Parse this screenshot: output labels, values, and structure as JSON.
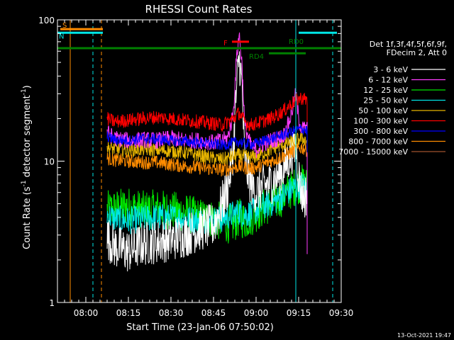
{
  "chart_data": {
    "type": "line",
    "title": "RHESSI Count Rates",
    "ylabel_text": "Count Rate (s",
    "ylabel_sup1": "-1",
    "ylabel_mid": " detector segment",
    "ylabel_sup2": "-1",
    "ylabel_end": ")",
    "xlabel": "Start Time (23-Jan-06 07:50:02)",
    "y_scale": "log",
    "ylim": [
      1,
      100
    ],
    "y_ticks": [
      {
        "value": 1,
        "label": "1"
      },
      {
        "value": 10,
        "label": "10"
      },
      {
        "value": 100,
        "label": "100"
      }
    ],
    "xlim_minutes": [
      0,
      100
    ],
    "x_ticks": [
      {
        "value": 10,
        "label": "08:00"
      },
      {
        "value": 25,
        "label": "08:15"
      },
      {
        "value": 40,
        "label": "08:30"
      },
      {
        "value": 55,
        "label": "08:45"
      },
      {
        "value": 70,
        "label": "09:00"
      },
      {
        "value": 85,
        "label": "09:15"
      },
      {
        "value": 100,
        "label": "09:30"
      }
    ],
    "legend_title": "Det 1f,3f,4f,5f,6f,9f,",
    "legend_subtitle": "FDecim 2, Att 0",
    "legend_position": "right",
    "series": [
      {
        "name": "3 - 6 keV",
        "color": "#ffffff",
        "points": [
          [
            17.5,
            2.9
          ],
          [
            20,
            2.5
          ],
          [
            25,
            2.3
          ],
          [
            30,
            2.6
          ],
          [
            35,
            2.7
          ],
          [
            40,
            2.8
          ],
          [
            45,
            3.0
          ],
          [
            50,
            3.3
          ],
          [
            55,
            3.5
          ],
          [
            58,
            5.0
          ],
          [
            60,
            6.5
          ],
          [
            62,
            12
          ],
          [
            63,
            30
          ],
          [
            64,
            55
          ],
          [
            65,
            35
          ],
          [
            66,
            10
          ],
          [
            68,
            7
          ],
          [
            70,
            6
          ],
          [
            72,
            6.5
          ],
          [
            75,
            7
          ],
          [
            78,
            8
          ],
          [
            80,
            9
          ],
          [
            82,
            11
          ],
          [
            84,
            13
          ],
          [
            85,
            8
          ],
          [
            86,
            6
          ],
          [
            87,
            5.5
          ],
          [
            88,
            6
          ]
        ]
      },
      {
        "name": "6 - 12 keV",
        "color": "#ff3cff",
        "points": [
          [
            17.5,
            16
          ],
          [
            20,
            14.5
          ],
          [
            25,
            14
          ],
          [
            30,
            14.2
          ],
          [
            35,
            14
          ],
          [
            40,
            14.5
          ],
          [
            45,
            14
          ],
          [
            50,
            14
          ],
          [
            55,
            13.5
          ],
          [
            58,
            14
          ],
          [
            60,
            14.5
          ],
          [
            62,
            22
          ],
          [
            63,
            50
          ],
          [
            64,
            80
          ],
          [
            65,
            50
          ],
          [
            66,
            18
          ],
          [
            68,
            13
          ],
          [
            70,
            12
          ],
          [
            72,
            13
          ],
          [
            75,
            14
          ],
          [
            78,
            14.5
          ],
          [
            80,
            15.5
          ],
          [
            82,
            20
          ],
          [
            84,
            30
          ],
          [
            85,
            20
          ],
          [
            86,
            17
          ],
          [
            88,
            17
          ]
        ]
      },
      {
        "name": "12 - 25 keV",
        "color": "#00e600",
        "points": [
          [
            17.5,
            4.5
          ],
          [
            20,
            4.6
          ],
          [
            25,
            4.8
          ],
          [
            30,
            4.5
          ],
          [
            35,
            4.6
          ],
          [
            40,
            4.5
          ],
          [
            45,
            4.3
          ],
          [
            50,
            4.0
          ],
          [
            55,
            3.9
          ],
          [
            58,
            3.7
          ],
          [
            60,
            3.6
          ],
          [
            62,
            3.6
          ],
          [
            64,
            4.0
          ],
          [
            66,
            3.8
          ],
          [
            68,
            4.0
          ],
          [
            70,
            4.3
          ],
          [
            72,
            4.6
          ],
          [
            75,
            5.0
          ],
          [
            78,
            5.3
          ],
          [
            80,
            5.8
          ],
          [
            82,
            6.2
          ],
          [
            84,
            6.7
          ],
          [
            86,
            7.0
          ],
          [
            88,
            6.6
          ]
        ]
      },
      {
        "name": "25 - 50 keV",
        "color": "#00e6e6",
        "points": [
          [
            17.5,
            4.2
          ],
          [
            20,
            3.9
          ],
          [
            25,
            3.8
          ],
          [
            30,
            3.9
          ],
          [
            35,
            4.0
          ],
          [
            40,
            4.0
          ],
          [
            45,
            3.9
          ],
          [
            50,
            3.8
          ],
          [
            55,
            3.8
          ],
          [
            58,
            3.9
          ],
          [
            60,
            4.1
          ],
          [
            62,
            4.2
          ],
          [
            64,
            4.4
          ],
          [
            66,
            4.2
          ],
          [
            68,
            4.3
          ],
          [
            70,
            4.5
          ],
          [
            72,
            4.8
          ],
          [
            75,
            5.0
          ],
          [
            78,
            5.4
          ],
          [
            80,
            5.8
          ],
          [
            82,
            6.2
          ],
          [
            84,
            6.6
          ],
          [
            86,
            6.8
          ],
          [
            88,
            6.5
          ]
        ]
      },
      {
        "name": "50 - 100 keV",
        "color": "#e6b400",
        "points": [
          [
            17.5,
            12.5
          ],
          [
            20,
            12.2
          ],
          [
            25,
            12.0
          ],
          [
            30,
            12.1
          ],
          [
            35,
            12.0
          ],
          [
            40,
            11.8
          ],
          [
            45,
            11.5
          ],
          [
            50,
            11.0
          ],
          [
            55,
            10.5
          ],
          [
            58,
            10.3
          ],
          [
            60,
            10.5
          ],
          [
            62,
            10.8
          ],
          [
            64,
            11.0
          ],
          [
            66,
            10.8
          ],
          [
            68,
            10.6
          ],
          [
            70,
            10.8
          ],
          [
            72,
            11.2
          ],
          [
            75,
            12.0
          ],
          [
            78,
            12.8
          ],
          [
            80,
            13.2
          ],
          [
            82,
            13.5
          ],
          [
            84,
            14.0
          ],
          [
            86,
            14.5
          ],
          [
            88,
            14.0
          ]
        ]
      },
      {
        "name": "100 - 300 keV",
        "color": "#ff0000",
        "points": [
          [
            17.5,
            20
          ],
          [
            20,
            19
          ],
          [
            25,
            19.5
          ],
          [
            30,
            20
          ],
          [
            35,
            20.5
          ],
          [
            40,
            20
          ],
          [
            45,
            19.5
          ],
          [
            50,
            19
          ],
          [
            55,
            18.5
          ],
          [
            58,
            18
          ],
          [
            60,
            19
          ],
          [
            62,
            20
          ],
          [
            64,
            22
          ],
          [
            66,
            19
          ],
          [
            68,
            18
          ],
          [
            70,
            18.5
          ],
          [
            72,
            19
          ],
          [
            75,
            20
          ],
          [
            78,
            21.5
          ],
          [
            80,
            23
          ],
          [
            82,
            25
          ],
          [
            84,
            27
          ],
          [
            86,
            28
          ],
          [
            88,
            27
          ]
        ]
      },
      {
        "name": "300 - 800 keV",
        "color": "#0000ff",
        "points": [
          [
            17.5,
            15
          ],
          [
            20,
            14.2
          ],
          [
            25,
            14.0
          ],
          [
            30,
            14.5
          ],
          [
            35,
            14.3
          ],
          [
            40,
            14.0
          ],
          [
            45,
            13.8
          ],
          [
            50,
            13.5
          ],
          [
            55,
            13.2
          ],
          [
            58,
            13.0
          ],
          [
            60,
            13.2
          ],
          [
            62,
            13.5
          ],
          [
            64,
            13.8
          ],
          [
            66,
            13.3
          ],
          [
            68,
            13.2
          ],
          [
            70,
            13.3
          ],
          [
            72,
            13.8
          ],
          [
            75,
            14.3
          ],
          [
            78,
            15.0
          ],
          [
            80,
            15.5
          ],
          [
            82,
            16.0
          ],
          [
            84,
            16.5
          ],
          [
            86,
            17.0
          ],
          [
            88,
            16.5
          ]
        ]
      },
      {
        "name": "800 - 7000 keV",
        "color": "#ff8c00",
        "points": [
          [
            17.5,
            10.5
          ],
          [
            20,
            10.2
          ],
          [
            25,
            10.0
          ],
          [
            30,
            9.8
          ],
          [
            35,
            9.8
          ],
          [
            40,
            9.5
          ],
          [
            45,
            9.2
          ],
          [
            50,
            9.0
          ],
          [
            55,
            8.8
          ],
          [
            58,
            8.7
          ],
          [
            60,
            8.8
          ],
          [
            62,
            9.0
          ],
          [
            64,
            9.2
          ],
          [
            66,
            9.0
          ],
          [
            68,
            8.9
          ],
          [
            70,
            9.0
          ],
          [
            72,
            9.4
          ],
          [
            75,
            10.0
          ],
          [
            78,
            10.5
          ],
          [
            80,
            11.0
          ],
          [
            82,
            11.5
          ],
          [
            84,
            12.0
          ],
          [
            86,
            12.5
          ],
          [
            88,
            12.0
          ]
        ]
      },
      {
        "name": "7000 - 15000 keV",
        "color": "#a0522d",
        "points": []
      }
    ],
    "flags": [
      {
        "label": "S",
        "color": "#ff8c00",
        "y": 86,
        "x0": 1,
        "x1": 16
      },
      {
        "label": "N",
        "color": "#00e6e6",
        "y": 81,
        "x0": 0,
        "x1": 16
      },
      {
        "label": "F",
        "color": "#ff0000",
        "y": 70,
        "x0": 61.5,
        "x1": 67.5
      },
      {
        "label": "RD0",
        "color": "#008000",
        "y": 63,
        "x0": 0,
        "x1": 107
      },
      {
        "label": "RD4",
        "color": "#008000",
        "y": 58,
        "x0": 74.5,
        "x1": 87.5
      },
      {
        "label": "",
        "color": "#00e6e6",
        "y": 81,
        "x0": 85,
        "x1": 98.5
      }
    ],
    "vlines": [
      {
        "x": 4.5,
        "color": "#ff8c00",
        "style": "solid"
      },
      {
        "x": 12.5,
        "color": "#00e6e6",
        "style": "dashed"
      },
      {
        "x": 15.5,
        "color": "#ff8c00",
        "style": "dashed"
      },
      {
        "x": 84,
        "color": "#00e6e6",
        "style": "solid"
      },
      {
        "x": 97,
        "color": "#00e6e6",
        "style": "dashed"
      }
    ],
    "footer_timestamp": "13-Oct-2021 19:47"
  }
}
